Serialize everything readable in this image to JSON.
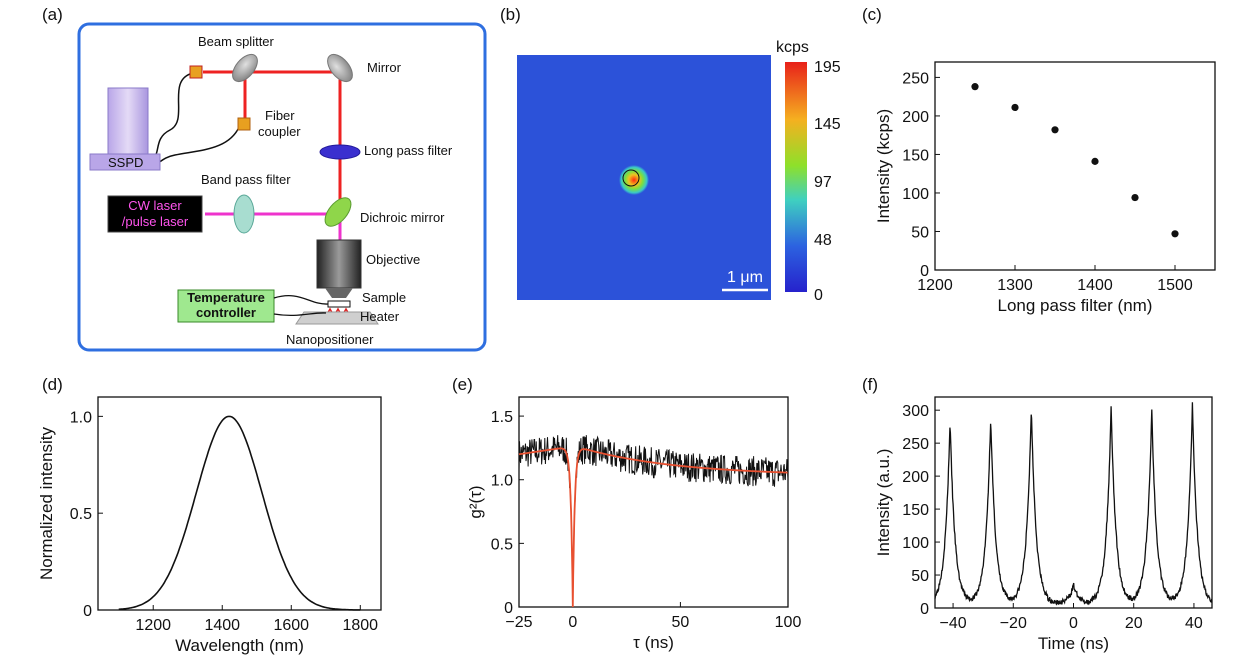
{
  "colors": {
    "box_border": "#2f6fe0",
    "beam_red": "#ee2222",
    "beam_pink": "#ee33cc",
    "fit_red": "#e85030",
    "dot_black": "#111111",
    "map_bg": "#2c52d9"
  },
  "panels": {
    "a": {
      "label": "(a)",
      "components": {
        "beam_splitter": "Beam splitter",
        "mirror": "Mirror",
        "fiber": "Fiber",
        "coupler": "coupler",
        "long_pass_filter": "Long pass filter",
        "sspd": "SSPD",
        "band_pass_filter": "Band pass filter",
        "laser_line1": "CW laser",
        "laser_line2": "/pulse laser",
        "dichroic_mirror": "Dichroic mirror",
        "objective": "Objective",
        "temp_line1": "Temperature",
        "temp_line2": "controller",
        "sample": "Sample",
        "heater": "Heater",
        "nanopositioner": "Nanopositioner"
      }
    },
    "b": {
      "label": "(b)",
      "colorbar_title": "kcps",
      "colorbar_ticks": [
        "195",
        "145",
        "97",
        "48",
        "0"
      ],
      "scalebar": "1 μm"
    },
    "c": {
      "label": "(c)"
    },
    "d": {
      "label": "(d)"
    },
    "e": {
      "label": "(e)"
    },
    "f": {
      "label": "(f)"
    }
  },
  "chart_data": [
    {
      "id": "c",
      "type": "scatter",
      "x": [
        1250,
        1300,
        1350,
        1400,
        1450,
        1500
      ],
      "y": [
        238,
        211,
        182,
        141,
        94,
        47
      ],
      "xlabel": "Long pass filter (nm)",
      "ylabel": "Intensity (kcps)",
      "xlim": [
        1200,
        1550
      ],
      "ylim": [
        0,
        270
      ],
      "xticks": [
        1200,
        1300,
        1400,
        1500
      ],
      "yticks": [
        0,
        50,
        100,
        150,
        200,
        250
      ]
    },
    {
      "id": "d",
      "type": "line",
      "series": [
        {
          "name": "spectrum",
          "center": 1420,
          "sigma": 95,
          "amplitude": 1.0
        }
      ],
      "xlabel": "Wavelength (nm)",
      "ylabel": "Normalized intensity",
      "xlim": [
        1040,
        1860
      ],
      "ylim": [
        0,
        1.1
      ],
      "xticks": [
        1200,
        1400,
        1600,
        1800
      ],
      "yticks": [
        0,
        0.5,
        1.0
      ],
      "ytick_labels": [
        "0",
        "0.5",
        "1.0"
      ]
    },
    {
      "id": "e",
      "type": "line",
      "series": [
        {
          "name": "data",
          "baseline_left": 1.2,
          "peak": 1.25,
          "tail": 1.05,
          "dip_at": 0,
          "noise": 0.12
        },
        {
          "name": "fit",
          "baseline_left": 1.2,
          "peak": 1.27,
          "tail": 1.03,
          "dip_at": 0,
          "dip_min": 0
        }
      ],
      "xlabel": "τ (ns)",
      "ylabel": "g²(τ)",
      "xlim": [
        -25,
        100
      ],
      "ylim": [
        0,
        1.65
      ],
      "xticks": [
        -25,
        0,
        50,
        100
      ],
      "yticks": [
        0,
        0.5,
        1.0,
        1.5
      ],
      "xtick_labels": [
        "−25",
        "0",
        "50",
        "100"
      ],
      "ytick_labels": [
        "0",
        "0.5",
        "1.0",
        "1.5"
      ]
    },
    {
      "id": "f",
      "type": "line",
      "series": [
        {
          "name": "histogram",
          "peaks_x": [
            -41,
            -27.5,
            -14,
            0,
            12.5,
            26,
            39.5
          ],
          "peaks_y": [
            285,
            290,
            305,
            35,
            307,
            302,
            310
          ],
          "baseline": 6,
          "decay": 1.6
        }
      ],
      "xlabel": "Time (ns)",
      "ylabel": "Intensity (a.u.)",
      "xlim": [
        -46,
        46
      ],
      "ylim": [
        0,
        320
      ],
      "xticks": [
        -40,
        -20,
        0,
        20,
        40
      ],
      "yticks": [
        0,
        50,
        100,
        150,
        200,
        250,
        300
      ],
      "xtick_labels": [
        "−40",
        "−20",
        "0",
        "20",
        "40"
      ]
    }
  ]
}
